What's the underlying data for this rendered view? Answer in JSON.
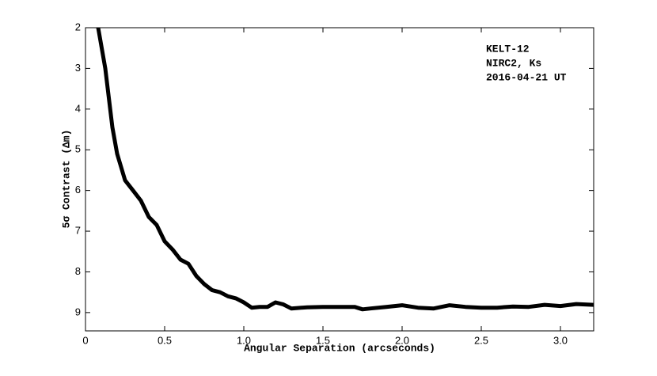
{
  "chart_data": {
    "type": "line",
    "x_label": "Angular Separation (arcseconds)",
    "y_label": "5σ Contrast (Δm)",
    "annotations": [
      "KELT-12",
      "NIRC2, Ks",
      "2016-04-21 UT"
    ],
    "x": [
      0.08,
      0.125,
      0.17,
      0.2,
      0.25,
      0.3,
      0.35,
      0.4,
      0.45,
      0.5,
      0.55,
      0.6,
      0.65,
      0.7,
      0.75,
      0.8,
      0.85,
      0.9,
      0.95,
      1.0,
      1.05,
      1.1,
      1.15,
      1.2,
      1.25,
      1.3,
      1.4,
      1.5,
      1.6,
      1.7,
      1.75,
      1.8,
      1.9,
      2.0,
      2.1,
      2.2,
      2.3,
      2.4,
      2.5,
      2.6,
      2.7,
      2.8,
      2.9,
      3.0,
      3.1,
      3.21
    ],
    "series": [
      {
        "name": "contrast",
        "color": "#000000",
        "values": [
          2.0,
          3.0,
          4.45,
          5.1,
          5.75,
          6.0,
          6.25,
          6.65,
          6.85,
          7.25,
          7.45,
          7.7,
          7.8,
          8.1,
          8.3,
          8.45,
          8.5,
          8.6,
          8.65,
          8.75,
          8.88,
          8.86,
          8.86,
          8.75,
          8.8,
          8.9,
          8.87,
          8.86,
          8.86,
          8.86,
          8.92,
          8.9,
          8.86,
          8.82,
          8.88,
          8.9,
          8.82,
          8.86,
          8.88,
          8.88,
          8.85,
          8.86,
          8.81,
          8.84,
          8.79,
          8.81
        ]
      }
    ],
    "xlim": [
      0,
      3.21
    ],
    "ylim": [
      9.45,
      2
    ],
    "y_inverted": true,
    "xticks": [
      0,
      0.5,
      {
        "value": 1,
        "label": "1.0"
      },
      1.5,
      {
        "value": 2,
        "label": "2.0"
      },
      2.5,
      {
        "value": 3,
        "label": "3.0"
      }
    ],
    "yticks": [
      2,
      3,
      4,
      5,
      6,
      7,
      8,
      9
    ],
    "grid": false
  }
}
